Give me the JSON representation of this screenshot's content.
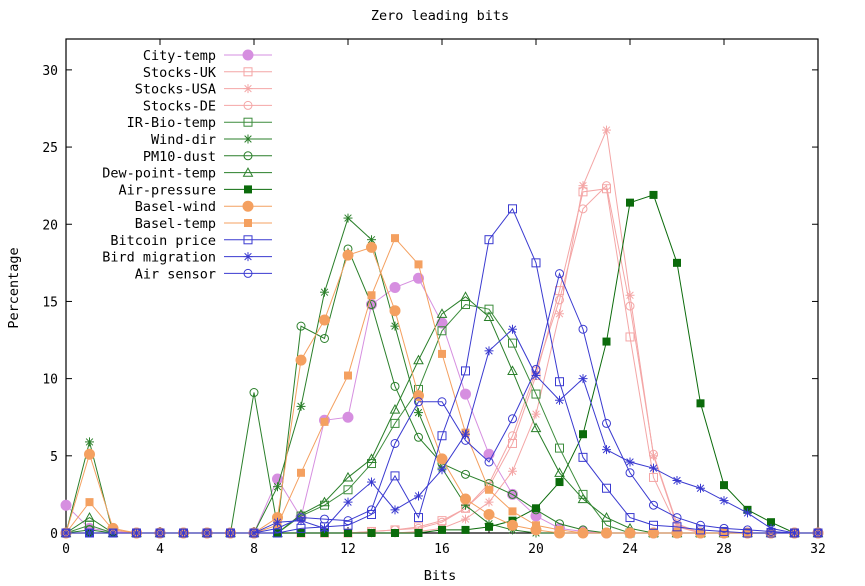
{
  "chart_data": {
    "type": "line",
    "title": "Zero leading bits",
    "xlabel": "Bits",
    "ylabel": "Percentage",
    "xlim": [
      0,
      32
    ],
    "ylim": [
      0,
      32
    ],
    "xticks": [
      0,
      4,
      8,
      12,
      16,
      20,
      24,
      28,
      32
    ],
    "yticks": [
      0,
      5,
      10,
      15,
      20,
      25,
      30
    ],
    "legend_position": "top-left",
    "grid": false,
    "x": [
      0,
      1,
      2,
      3,
      4,
      5,
      6,
      7,
      8,
      9,
      10,
      11,
      12,
      13,
      14,
      15,
      16,
      17,
      18,
      19,
      20,
      21,
      22,
      23,
      24,
      25,
      26,
      27,
      28,
      29,
      30,
      31,
      32
    ],
    "series": [
      {
        "name": "City-temp",
        "color": "#d68fe0",
        "marker": "filled-circle",
        "values": [
          1.8,
          0.3,
          0.1,
          0,
          0,
          0,
          0,
          0,
          0,
          3.5,
          1.0,
          7.3,
          7.5,
          14.8,
          15.9,
          16.5,
          13.6,
          9.0,
          5.1,
          2.5,
          1.1,
          0.3,
          0.1,
          0,
          0,
          0,
          0,
          0,
          0,
          0,
          0,
          0,
          0
        ]
      },
      {
        "name": "Stocks-UK",
        "color": "#f4a6a6",
        "marker": "open-square",
        "values": [
          0,
          0,
          0,
          0,
          0,
          0,
          0,
          0,
          0,
          0,
          0,
          0,
          0,
          0.1,
          0.2,
          0.4,
          0.8,
          1.6,
          3.0,
          5.8,
          10.2,
          15.7,
          22.1,
          22.3,
          12.7,
          3.6,
          0.4,
          0,
          0,
          0,
          0,
          0,
          0
        ]
      },
      {
        "name": "Stocks-USA",
        "color": "#f4a6a6",
        "marker": "star",
        "values": [
          0,
          0,
          0,
          0,
          0,
          0,
          0,
          0,
          0,
          0,
          0,
          0,
          0,
          0,
          0,
          0.1,
          0.3,
          0.9,
          2.0,
          4.0,
          7.7,
          14.2,
          22.5,
          26.1,
          15.4,
          5.0,
          0.5,
          0,
          0,
          0,
          0,
          0,
          0
        ]
      },
      {
        "name": "Stocks-DE",
        "color": "#f4a6a6",
        "marker": "open-circle",
        "values": [
          0,
          0,
          0,
          0,
          0,
          0,
          0,
          0,
          0,
          0,
          0,
          0,
          0,
          0.1,
          0.2,
          0.3,
          0.7,
          1.6,
          3.2,
          6.3,
          10.5,
          15.1,
          21.0,
          22.5,
          14.7,
          5.1,
          0.6,
          0,
          0,
          0,
          0,
          0,
          0
        ]
      },
      {
        "name": "IR-Bio-temp",
        "color": "#3c8c3c",
        "marker": "open-square",
        "values": [
          0,
          0.5,
          0,
          0,
          0,
          0,
          0,
          0,
          0,
          0,
          1.1,
          1.8,
          2.8,
          4.5,
          7.1,
          9.3,
          13.1,
          14.8,
          14.5,
          12.3,
          9.0,
          5.5,
          2.5,
          0.5,
          0,
          0,
          0,
          0,
          0,
          0,
          0,
          0,
          0
        ]
      },
      {
        "name": "Wind-dir",
        "color": "#2a7f2a",
        "marker": "star",
        "values": [
          0,
          5.9,
          0,
          0,
          0,
          0,
          0,
          0,
          0,
          3.0,
          8.2,
          15.6,
          20.4,
          19.0,
          13.4,
          7.8,
          4.2,
          1.8,
          0.6,
          0.2,
          0,
          0,
          0,
          0,
          0,
          0,
          0,
          0,
          0,
          0,
          0,
          0,
          0
        ]
      },
      {
        "name": "PM10-dust",
        "color": "#2a7f2a",
        "marker": "open-circle",
        "values": [
          0,
          0.2,
          0,
          0,
          0,
          0,
          0,
          0,
          9.1,
          0.4,
          13.4,
          12.6,
          18.4,
          14.8,
          9.5,
          6.2,
          4.5,
          3.8,
          3.2,
          2.5,
          1.5,
          0.6,
          0.2,
          0,
          0,
          0,
          0,
          0,
          0,
          0,
          0,
          0,
          0
        ]
      },
      {
        "name": "Dew-point-temp",
        "color": "#2a7f2a",
        "marker": "open-triangle",
        "values": [
          0,
          1.0,
          0,
          0,
          0,
          0,
          0,
          0,
          0,
          0,
          1.2,
          2.0,
          3.6,
          4.8,
          8.0,
          11.2,
          14.2,
          15.3,
          14.0,
          10.5,
          6.8,
          3.9,
          2.2,
          1.0,
          0.3,
          0,
          0,
          0,
          0,
          0,
          0,
          0,
          0
        ]
      },
      {
        "name": "Air-pressure",
        "color": "#0b6b0b",
        "marker": "filled-square",
        "values": [
          0,
          0,
          0,
          0,
          0,
          0,
          0,
          0,
          0,
          0,
          0,
          0,
          0,
          0,
          0,
          0,
          0.2,
          0.2,
          0.4,
          0.8,
          1.6,
          3.3,
          6.4,
          12.4,
          21.4,
          21.9,
          17.5,
          8.4,
          3.1,
          1.5,
          0.7,
          0,
          0
        ]
      },
      {
        "name": "Basel-wind",
        "color": "#f4a060",
        "marker": "filled-circle",
        "values": [
          0,
          5.1,
          0.3,
          0,
          0,
          0,
          0,
          0,
          0,
          1.0,
          11.2,
          13.8,
          18.0,
          18.5,
          14.4,
          8.9,
          4.8,
          2.2,
          1.2,
          0.5,
          0.2,
          0,
          0,
          0,
          0,
          0,
          0,
          0,
          0,
          0,
          0,
          0,
          0
        ]
      },
      {
        "name": "Basel-temp",
        "color": "#f4a060",
        "marker": "filled-square",
        "values": [
          0,
          2.0,
          0.2,
          0,
          0,
          0,
          0,
          0,
          0,
          0.5,
          3.9,
          7.2,
          10.2,
          15.4,
          19.1,
          17.4,
          11.6,
          6.5,
          2.8,
          1.4,
          0.5,
          0.2,
          0,
          0,
          0,
          0,
          0,
          0,
          0,
          0,
          0,
          0,
          0
        ]
      },
      {
        "name": "Bitcoin price",
        "color": "#3a3ad0",
        "marker": "open-square",
        "values": [
          0,
          0,
          0,
          0,
          0,
          0,
          0,
          0,
          0,
          0,
          0.3,
          0.4,
          0.5,
          1.2,
          3.7,
          1.0,
          6.3,
          10.5,
          19.0,
          21.0,
          17.5,
          9.8,
          4.9,
          2.9,
          1.0,
          0.5,
          0.4,
          0.2,
          0.1,
          0,
          0,
          0,
          0
        ]
      },
      {
        "name": "Bird migration",
        "color": "#3a3ad0",
        "marker": "star",
        "values": [
          0,
          0,
          0,
          0,
          0,
          0,
          0,
          0,
          0,
          0.7,
          0.8,
          0.3,
          2.0,
          3.3,
          1.5,
          2.4,
          4.1,
          6.4,
          11.8,
          13.2,
          10.2,
          8.6,
          10.0,
          5.4,
          4.6,
          4.2,
          3.4,
          2.9,
          2.1,
          1.3,
          0.3,
          0,
          0
        ]
      },
      {
        "name": "Air sensor",
        "color": "#3a3ad0",
        "marker": "open-circle",
        "values": [
          0,
          0,
          0,
          0,
          0,
          0,
          0,
          0,
          0,
          0.3,
          1.0,
          0.9,
          0.8,
          1.5,
          5.8,
          8.5,
          8.5,
          6.0,
          4.6,
          7.4,
          10.6,
          16.8,
          13.2,
          7.1,
          3.9,
          1.8,
          1.0,
          0.5,
          0.3,
          0.2,
          0.1,
          0,
          0
        ]
      }
    ]
  }
}
